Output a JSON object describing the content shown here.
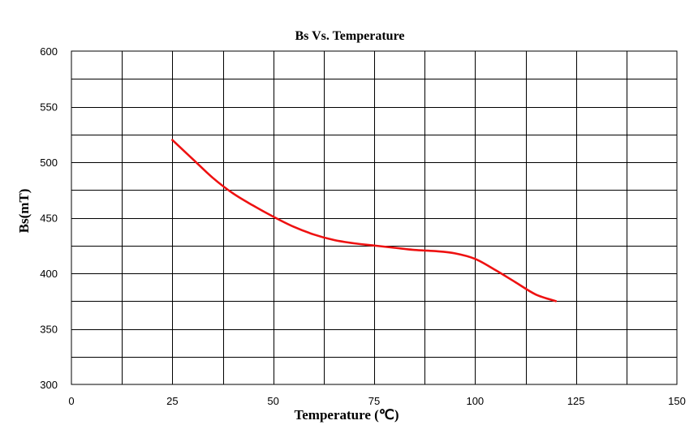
{
  "chart_data": {
    "type": "line",
    "title": "Bs Vs. Temperature",
    "xlabel": "Temperature (℃)",
    "ylabel": "Bs(mT)",
    "xlim": [
      0,
      150
    ],
    "ylim": [
      300,
      600
    ],
    "xticks": [
      0,
      25,
      50,
      75,
      100,
      125,
      150
    ],
    "yticks": [
      300,
      350,
      400,
      450,
      500,
      550,
      600
    ],
    "x_minor_step": 12.5,
    "y_minor_step": 25,
    "grid": true,
    "series": [
      {
        "color": "#ee1111",
        "x": [
          25,
          30,
          35,
          40,
          45,
          50,
          55,
          60,
          65,
          70,
          75,
          80,
          85,
          90,
          95,
          100,
          105,
          110,
          115,
          120
        ],
        "y": [
          520,
          503,
          486,
          472,
          461,
          451,
          442,
          435,
          430,
          427,
          425,
          423,
          421,
          420,
          418,
          413,
          403,
          392,
          381,
          375
        ]
      }
    ]
  }
}
